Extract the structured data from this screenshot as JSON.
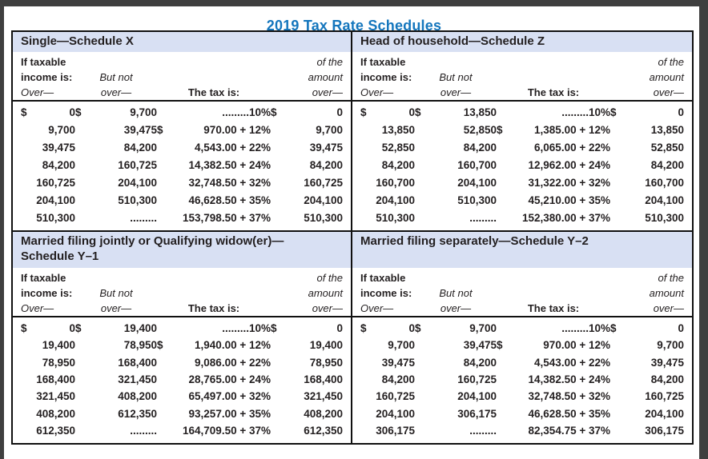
{
  "title": "2019 Tax Rate Schedules",
  "colors": {
    "title_blue": "#1476bd",
    "band_blue": "#d8e0f3",
    "text_dark": "#231f20",
    "frame_gray": "#3f3f3f"
  },
  "columns": {
    "c1_l1": "If taxable",
    "c1_l2": "income is:",
    "c1_l3": "Over—",
    "c2_l2": "But not",
    "c2_l3": "over—",
    "c3_l3": "The tax is:",
    "c4_l1": "of the",
    "c4_l2": "amount",
    "c4_l3": "over—"
  },
  "schedules": [
    {
      "id": "single",
      "title_lines": [
        "Single—Schedule X"
      ],
      "rows": [
        [
          [
            "$",
            "0"
          ],
          [
            "$",
            "9,700"
          ],
          [
            "",
            ".........10%"
          ],
          [
            "$",
            "0"
          ]
        ],
        [
          [
            "",
            "9,700"
          ],
          [
            "",
            "39,475"
          ],
          [
            "$",
            "970.00 + 12%"
          ],
          [
            "",
            "9,700"
          ]
        ],
        [
          [
            "",
            "39,475"
          ],
          [
            "",
            "84,200"
          ],
          [
            "",
            "4,543.00 + 22%"
          ],
          [
            "",
            "39,475"
          ]
        ],
        [
          [
            "",
            "84,200"
          ],
          [
            "",
            "160,725"
          ],
          [
            "",
            "14,382.50 + 24%"
          ],
          [
            "",
            "84,200"
          ]
        ],
        [
          [
            "",
            "160,725"
          ],
          [
            "",
            "204,100"
          ],
          [
            "",
            "32,748.50 + 32%"
          ],
          [
            "",
            "160,725"
          ]
        ],
        [
          [
            "",
            "204,100"
          ],
          [
            "",
            "510,300"
          ],
          [
            "",
            "46,628.50 + 35%"
          ],
          [
            "",
            "204,100"
          ]
        ],
        [
          [
            "",
            "510,300"
          ],
          [
            "",
            "........."
          ],
          [
            "",
            "153,798.50 + 37%"
          ],
          [
            "",
            "510,300"
          ]
        ]
      ]
    },
    {
      "id": "head-of-household",
      "title_lines": [
        "Head of household—Schedule Z"
      ],
      "rows": [
        [
          [
            "$",
            "0"
          ],
          [
            "$",
            "13,850"
          ],
          [
            "",
            ".........10%"
          ],
          [
            "$",
            "0"
          ]
        ],
        [
          [
            "",
            "13,850"
          ],
          [
            "",
            "52,850"
          ],
          [
            "$",
            "1,385.00 + 12%"
          ],
          [
            "",
            "13,850"
          ]
        ],
        [
          [
            "",
            "52,850"
          ],
          [
            "",
            "84,200"
          ],
          [
            "",
            "6,065.00 + 22%"
          ],
          [
            "",
            "52,850"
          ]
        ],
        [
          [
            "",
            "84,200"
          ],
          [
            "",
            "160,700"
          ],
          [
            "",
            "12,962.00 + 24%"
          ],
          [
            "",
            "84,200"
          ]
        ],
        [
          [
            "",
            "160,700"
          ],
          [
            "",
            "204,100"
          ],
          [
            "",
            "31,322.00 + 32%"
          ],
          [
            "",
            "160,700"
          ]
        ],
        [
          [
            "",
            "204,100"
          ],
          [
            "",
            "510,300"
          ],
          [
            "",
            "45,210.00 + 35%"
          ],
          [
            "",
            "204,100"
          ]
        ],
        [
          [
            "",
            "510,300"
          ],
          [
            "",
            "........."
          ],
          [
            "",
            "152,380.00 + 37%"
          ],
          [
            "",
            "510,300"
          ]
        ]
      ]
    },
    {
      "id": "married-filing-jointly",
      "title_lines": [
        "Married filing jointly or Qualifying widow(er)—",
        "Schedule Y–1"
      ],
      "rows": [
        [
          [
            "$",
            "0"
          ],
          [
            "$",
            "19,400"
          ],
          [
            "",
            ".........10%"
          ],
          [
            "$",
            "0"
          ]
        ],
        [
          [
            "",
            "19,400"
          ],
          [
            "",
            "78,950"
          ],
          [
            "$",
            "1,940.00 + 12%"
          ],
          [
            "",
            "19,400"
          ]
        ],
        [
          [
            "",
            "78,950"
          ],
          [
            "",
            "168,400"
          ],
          [
            "",
            "9,086.00 + 22%"
          ],
          [
            "",
            "78,950"
          ]
        ],
        [
          [
            "",
            "168,400"
          ],
          [
            "",
            "321,450"
          ],
          [
            "",
            "28,765.00 + 24%"
          ],
          [
            "",
            "168,400"
          ]
        ],
        [
          [
            "",
            "321,450"
          ],
          [
            "",
            "408,200"
          ],
          [
            "",
            "65,497.00 + 32%"
          ],
          [
            "",
            "321,450"
          ]
        ],
        [
          [
            "",
            "408,200"
          ],
          [
            "",
            "612,350"
          ],
          [
            "",
            "93,257.00 + 35%"
          ],
          [
            "",
            "408,200"
          ]
        ],
        [
          [
            "",
            "612,350"
          ],
          [
            "",
            "........."
          ],
          [
            "",
            "164,709.50 + 37%"
          ],
          [
            "",
            "612,350"
          ]
        ]
      ]
    },
    {
      "id": "married-filing-separately",
      "title_lines": [
        "Married filing separately—Schedule Y–2"
      ],
      "rows": [
        [
          [
            "$",
            "0"
          ],
          [
            "$",
            "9,700"
          ],
          [
            "",
            ".........10%"
          ],
          [
            "$",
            "0"
          ]
        ],
        [
          [
            "",
            "9,700"
          ],
          [
            "",
            "39,475"
          ],
          [
            "$",
            "970.00 + 12%"
          ],
          [
            "",
            "9,700"
          ]
        ],
        [
          [
            "",
            "39,475"
          ],
          [
            "",
            "84,200"
          ],
          [
            "",
            "4,543.00 + 22%"
          ],
          [
            "",
            "39,475"
          ]
        ],
        [
          [
            "",
            "84,200"
          ],
          [
            "",
            "160,725"
          ],
          [
            "",
            "14,382.50 + 24%"
          ],
          [
            "",
            "84,200"
          ]
        ],
        [
          [
            "",
            "160,725"
          ],
          [
            "",
            "204,100"
          ],
          [
            "",
            "32,748.50 + 32%"
          ],
          [
            "",
            "160,725"
          ]
        ],
        [
          [
            "",
            "204,100"
          ],
          [
            "",
            "306,175"
          ],
          [
            "",
            "46,628.50 + 35%"
          ],
          [
            "",
            "204,100"
          ]
        ],
        [
          [
            "",
            "306,175"
          ],
          [
            "",
            "........."
          ],
          [
            "",
            "82,354.75 + 37%"
          ],
          [
            "",
            "306,175"
          ]
        ]
      ]
    }
  ]
}
